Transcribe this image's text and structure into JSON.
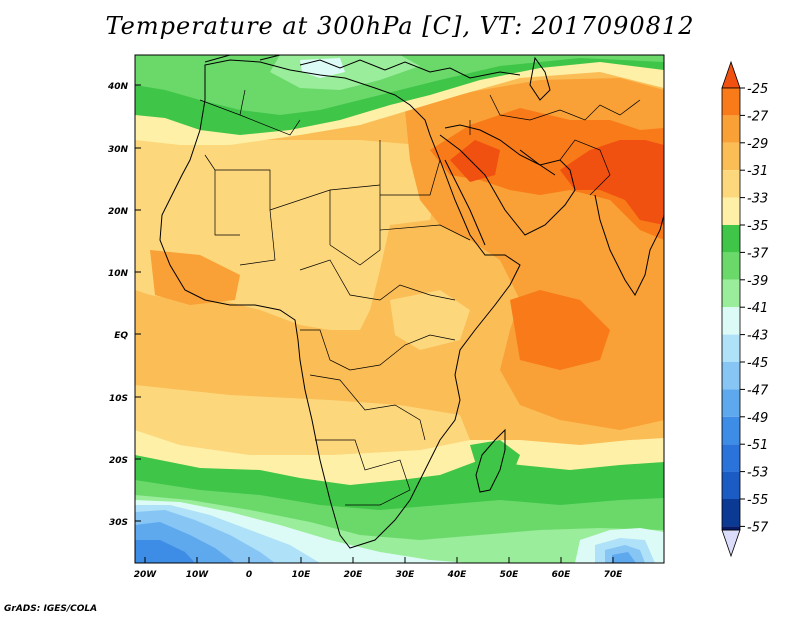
{
  "title": "Temperature at 300hPa [C], VT: 2017090812",
  "credit": "GrADS: IGES/COLA",
  "map": {
    "lat_labels": [
      "40N",
      "30N",
      "20N",
      "10N",
      "EQ",
      "10S",
      "20S",
      "30S"
    ],
    "lon_labels": [
      "20W",
      "10W",
      "0",
      "10E",
      "20E",
      "30E",
      "40E",
      "50E",
      "60E",
      "70E"
    ]
  },
  "colorbar": {
    "labels": [
      "-25",
      "-27",
      "-29",
      "-31",
      "-33",
      "-35",
      "-37",
      "-39",
      "-41",
      "-43",
      "-45",
      "-47",
      "-49",
      "-51",
      "-53",
      "-55",
      "-57"
    ],
    "colors": {
      "c1": "#f05010",
      "c2": "#f87a18",
      "c3": "#f9a036",
      "c4": "#fbbd55",
      "c5": "#fdd77c",
      "c6": "#fef0a6",
      "c7": "#3fc547",
      "c8": "#6ad96a",
      "c9": "#9aed9a",
      "c10": "#dcfbf6",
      "c11": "#afe1f9",
      "c12": "#86c5f4",
      "c13": "#5ea8ee",
      "c14": "#3d8de6",
      "c15": "#2a73db",
      "c16": "#1a5bc4",
      "c17": "#0b3a95",
      "c18": "#081a6a",
      "c19": "#dcdcfb"
    }
  }
}
